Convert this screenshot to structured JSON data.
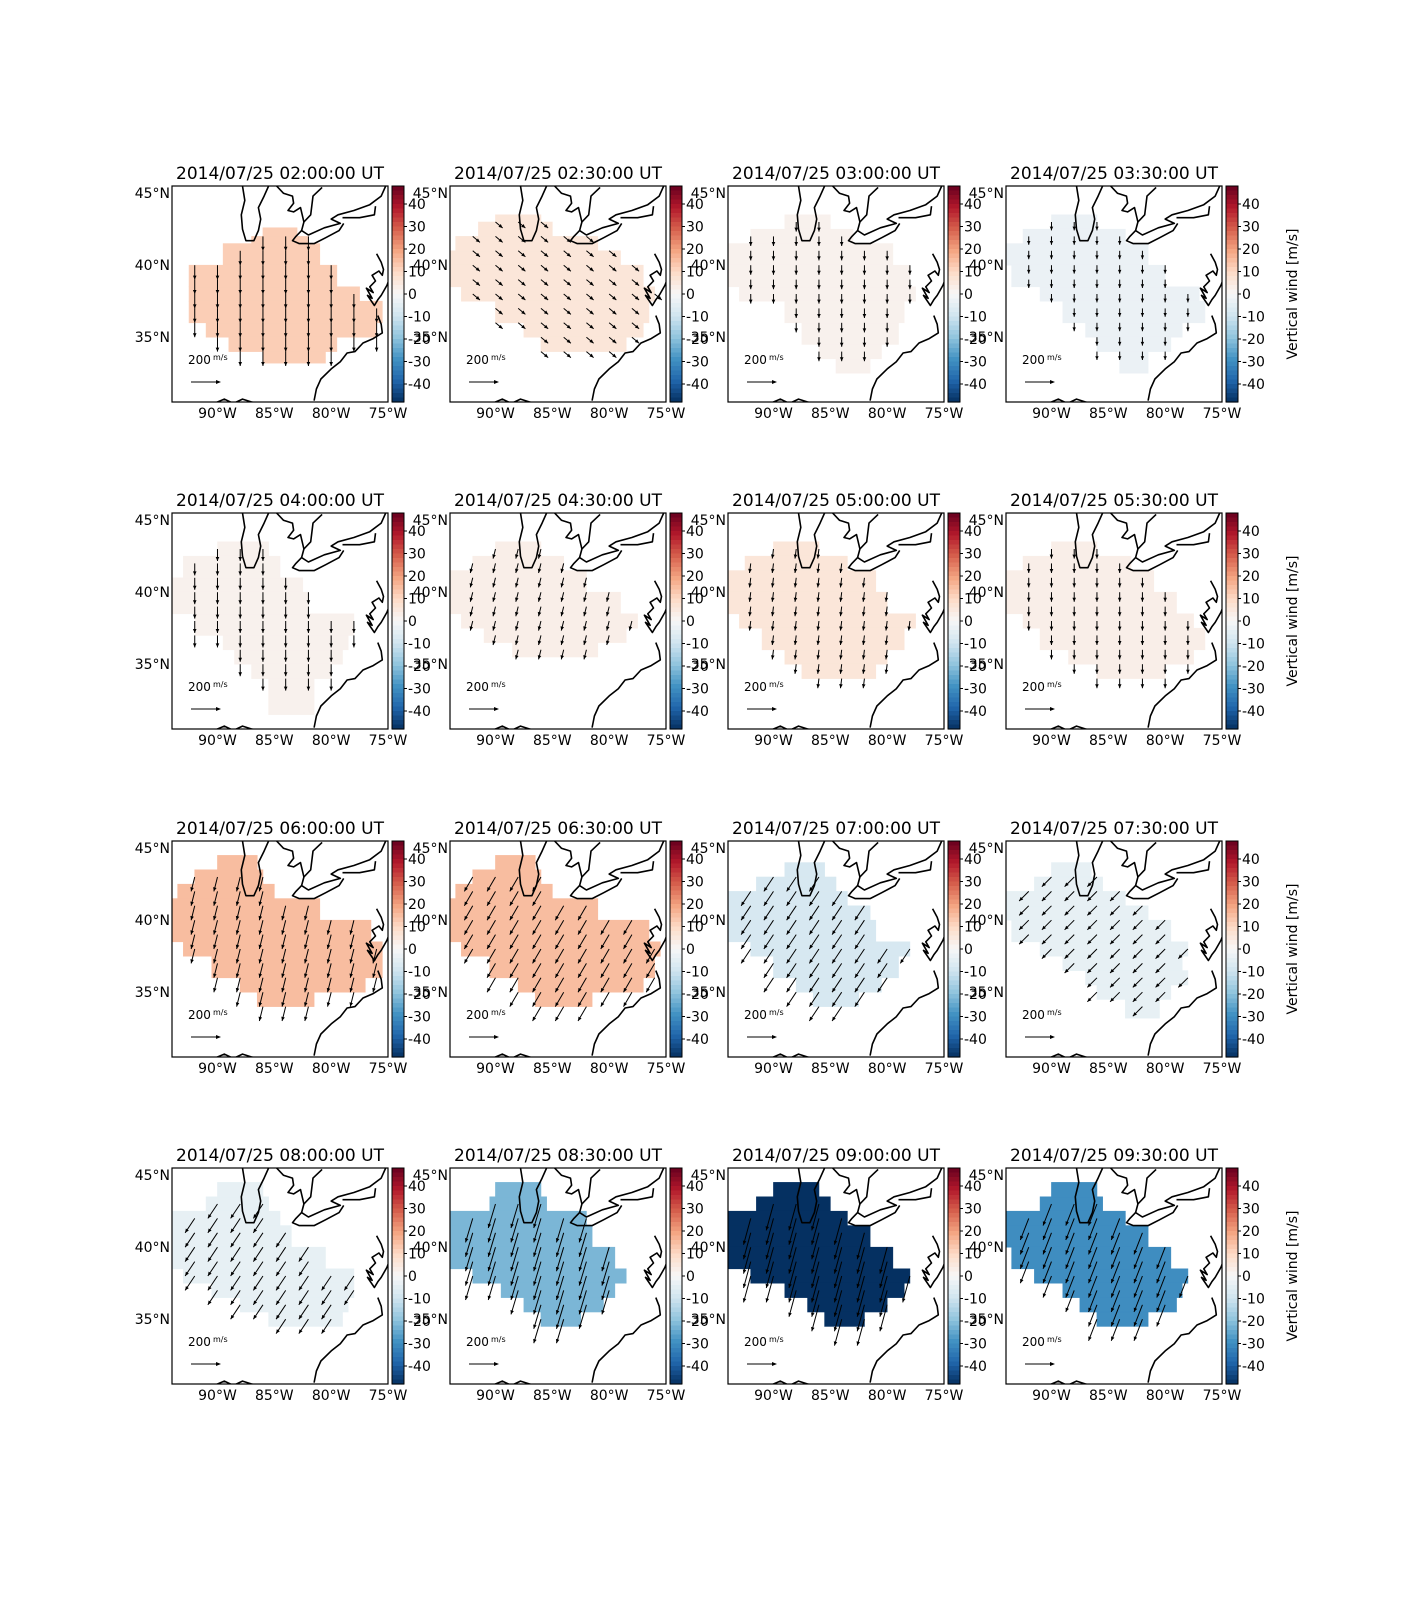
{
  "vector_scale_label": "200",
  "vector_scale_units": "m/s",
  "lon_ticks": [
    "90°W",
    "85°W",
    "80°W",
    "75°W"
  ],
  "lat_ticks": [
    "45°N",
    "40°N",
    "35°N"
  ],
  "colorbar": {
    "ticks": [
      40,
      30,
      20,
      10,
      0,
      -10,
      -20,
      -30,
      -40
    ],
    "range": [
      -48,
      48
    ],
    "label": "Vertical wind [m/s]",
    "cmap": "RdBu_r"
  },
  "chart_data": {
    "type": "heatmap",
    "description_axes": {
      "x_range_lon": [
        -94,
        -75
      ],
      "y_range_lat": [
        30.5,
        45.5
      ]
    },
    "panels": [
      {
        "title": "2014/07/25 02:00:00 UT",
        "vertical_wind": 12,
        "arrow_u": 0.0,
        "arrow_v": -0.12,
        "shape": "p0200"
      },
      {
        "title": "2014/07/25 02:30:00 UT",
        "vertical_wind": 6,
        "arrow_u": 0.06,
        "arrow_v": -0.05,
        "shape": "p0230"
      },
      {
        "title": "2014/07/25 03:00:00 UT",
        "vertical_wind": 2,
        "arrow_u": 0.0,
        "arrow_v": -0.08,
        "shape": "p0300"
      },
      {
        "title": "2014/07/25 03:30:00 UT",
        "vertical_wind": -3,
        "arrow_u": 0.0,
        "arrow_v": -0.07,
        "shape": "p0330"
      },
      {
        "title": "2014/07/25 04:00:00 UT",
        "vertical_wind": 2,
        "arrow_u": 0.0,
        "arrow_v": -0.1,
        "shape": "p0400"
      },
      {
        "title": "2014/07/25 04:30:00 UT",
        "vertical_wind": 3,
        "arrow_u": -0.02,
        "arrow_v": -0.08,
        "shape": "p0430"
      },
      {
        "title": "2014/07/25 05:00:00 UT",
        "vertical_wind": 6,
        "arrow_u": -0.01,
        "arrow_v": -0.08,
        "shape": "p0500"
      },
      {
        "title": "2014/07/25 05:30:00 UT",
        "vertical_wind": 3,
        "arrow_u": 0.0,
        "arrow_v": -0.08,
        "shape": "p0530"
      },
      {
        "title": "2014/07/25 06:00:00 UT",
        "vertical_wind": 15,
        "arrow_u": -0.03,
        "arrow_v": -0.12,
        "shape": "p0600"
      },
      {
        "title": "2014/07/25 06:30:00 UT",
        "vertical_wind": 15,
        "arrow_u": -0.07,
        "arrow_v": -0.12,
        "shape": "p0630"
      },
      {
        "title": "2014/07/25 07:00:00 UT",
        "vertical_wind": -8,
        "arrow_u": -0.08,
        "arrow_v": -0.12,
        "shape": "p0700"
      },
      {
        "title": "2014/07/25 07:30:00 UT",
        "vertical_wind": -4,
        "arrow_u": -0.08,
        "arrow_v": -0.08,
        "shape": "p0730"
      },
      {
        "title": "2014/07/25 08:00:00 UT",
        "vertical_wind": -4,
        "arrow_u": -0.08,
        "arrow_v": -0.12,
        "shape": "p0800"
      },
      {
        "title": "2014/07/25 08:30:00 UT",
        "vertical_wind": -22,
        "arrow_u": -0.06,
        "arrow_v": -0.2,
        "shape": "p0830"
      },
      {
        "title": "2014/07/25 09:00:00 UT",
        "vertical_wind": -48,
        "arrow_u": -0.06,
        "arrow_v": -0.22,
        "shape": "p0900"
      },
      {
        "title": "2014/07/25 09:30:00 UT",
        "vertical_wind": -30,
        "arrow_u": -0.07,
        "arrow_v": -0.18,
        "shape": "p0930"
      }
    ]
  }
}
